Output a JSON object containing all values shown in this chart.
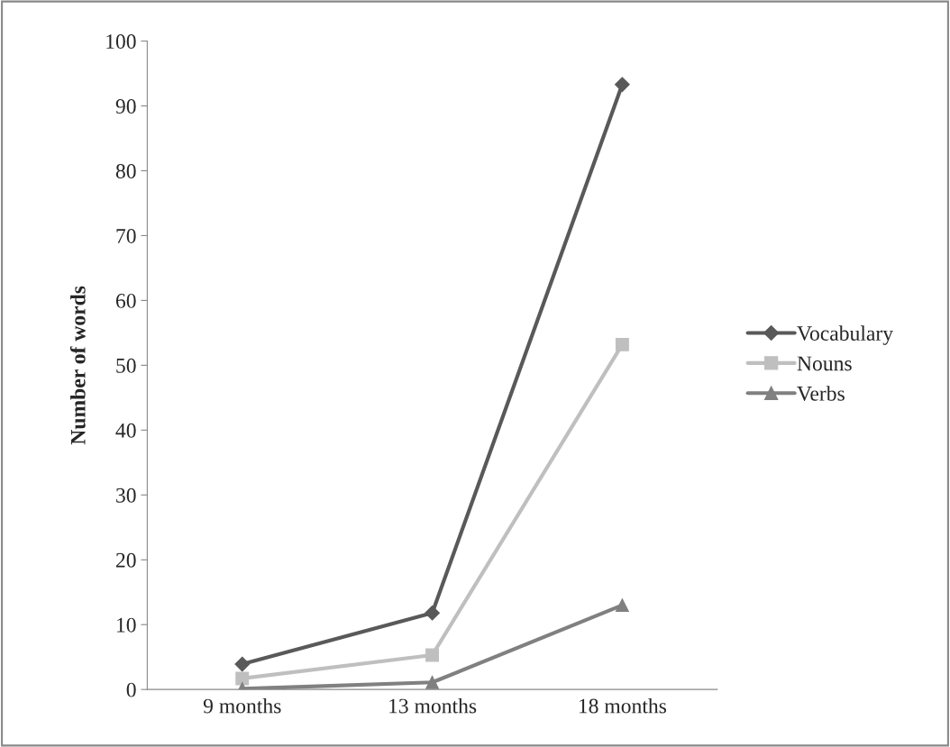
{
  "chart_data": {
    "type": "line",
    "ylabel": "Number of words",
    "categories": [
      "9 months",
      "13 months",
      "18 months"
    ],
    "series": [
      {
        "name": "Vocabulary",
        "color": "#595959",
        "marker": "diamond",
        "values": [
          3.9,
          11.8,
          93.3
        ]
      },
      {
        "name": "Nouns",
        "color": "#bfbfbf",
        "marker": "square",
        "values": [
          1.7,
          5.3,
          53.2
        ]
      },
      {
        "name": "Verbs",
        "color": "#808080",
        "marker": "triangle",
        "values": [
          0.1,
          1.1,
          13.0
        ]
      }
    ],
    "ylim": [
      0,
      100
    ],
    "yticks": [
      0,
      10,
      20,
      30,
      40,
      50,
      60,
      70,
      80,
      90,
      100
    ],
    "grid": false,
    "legend": "right",
    "line_style": "solid"
  }
}
